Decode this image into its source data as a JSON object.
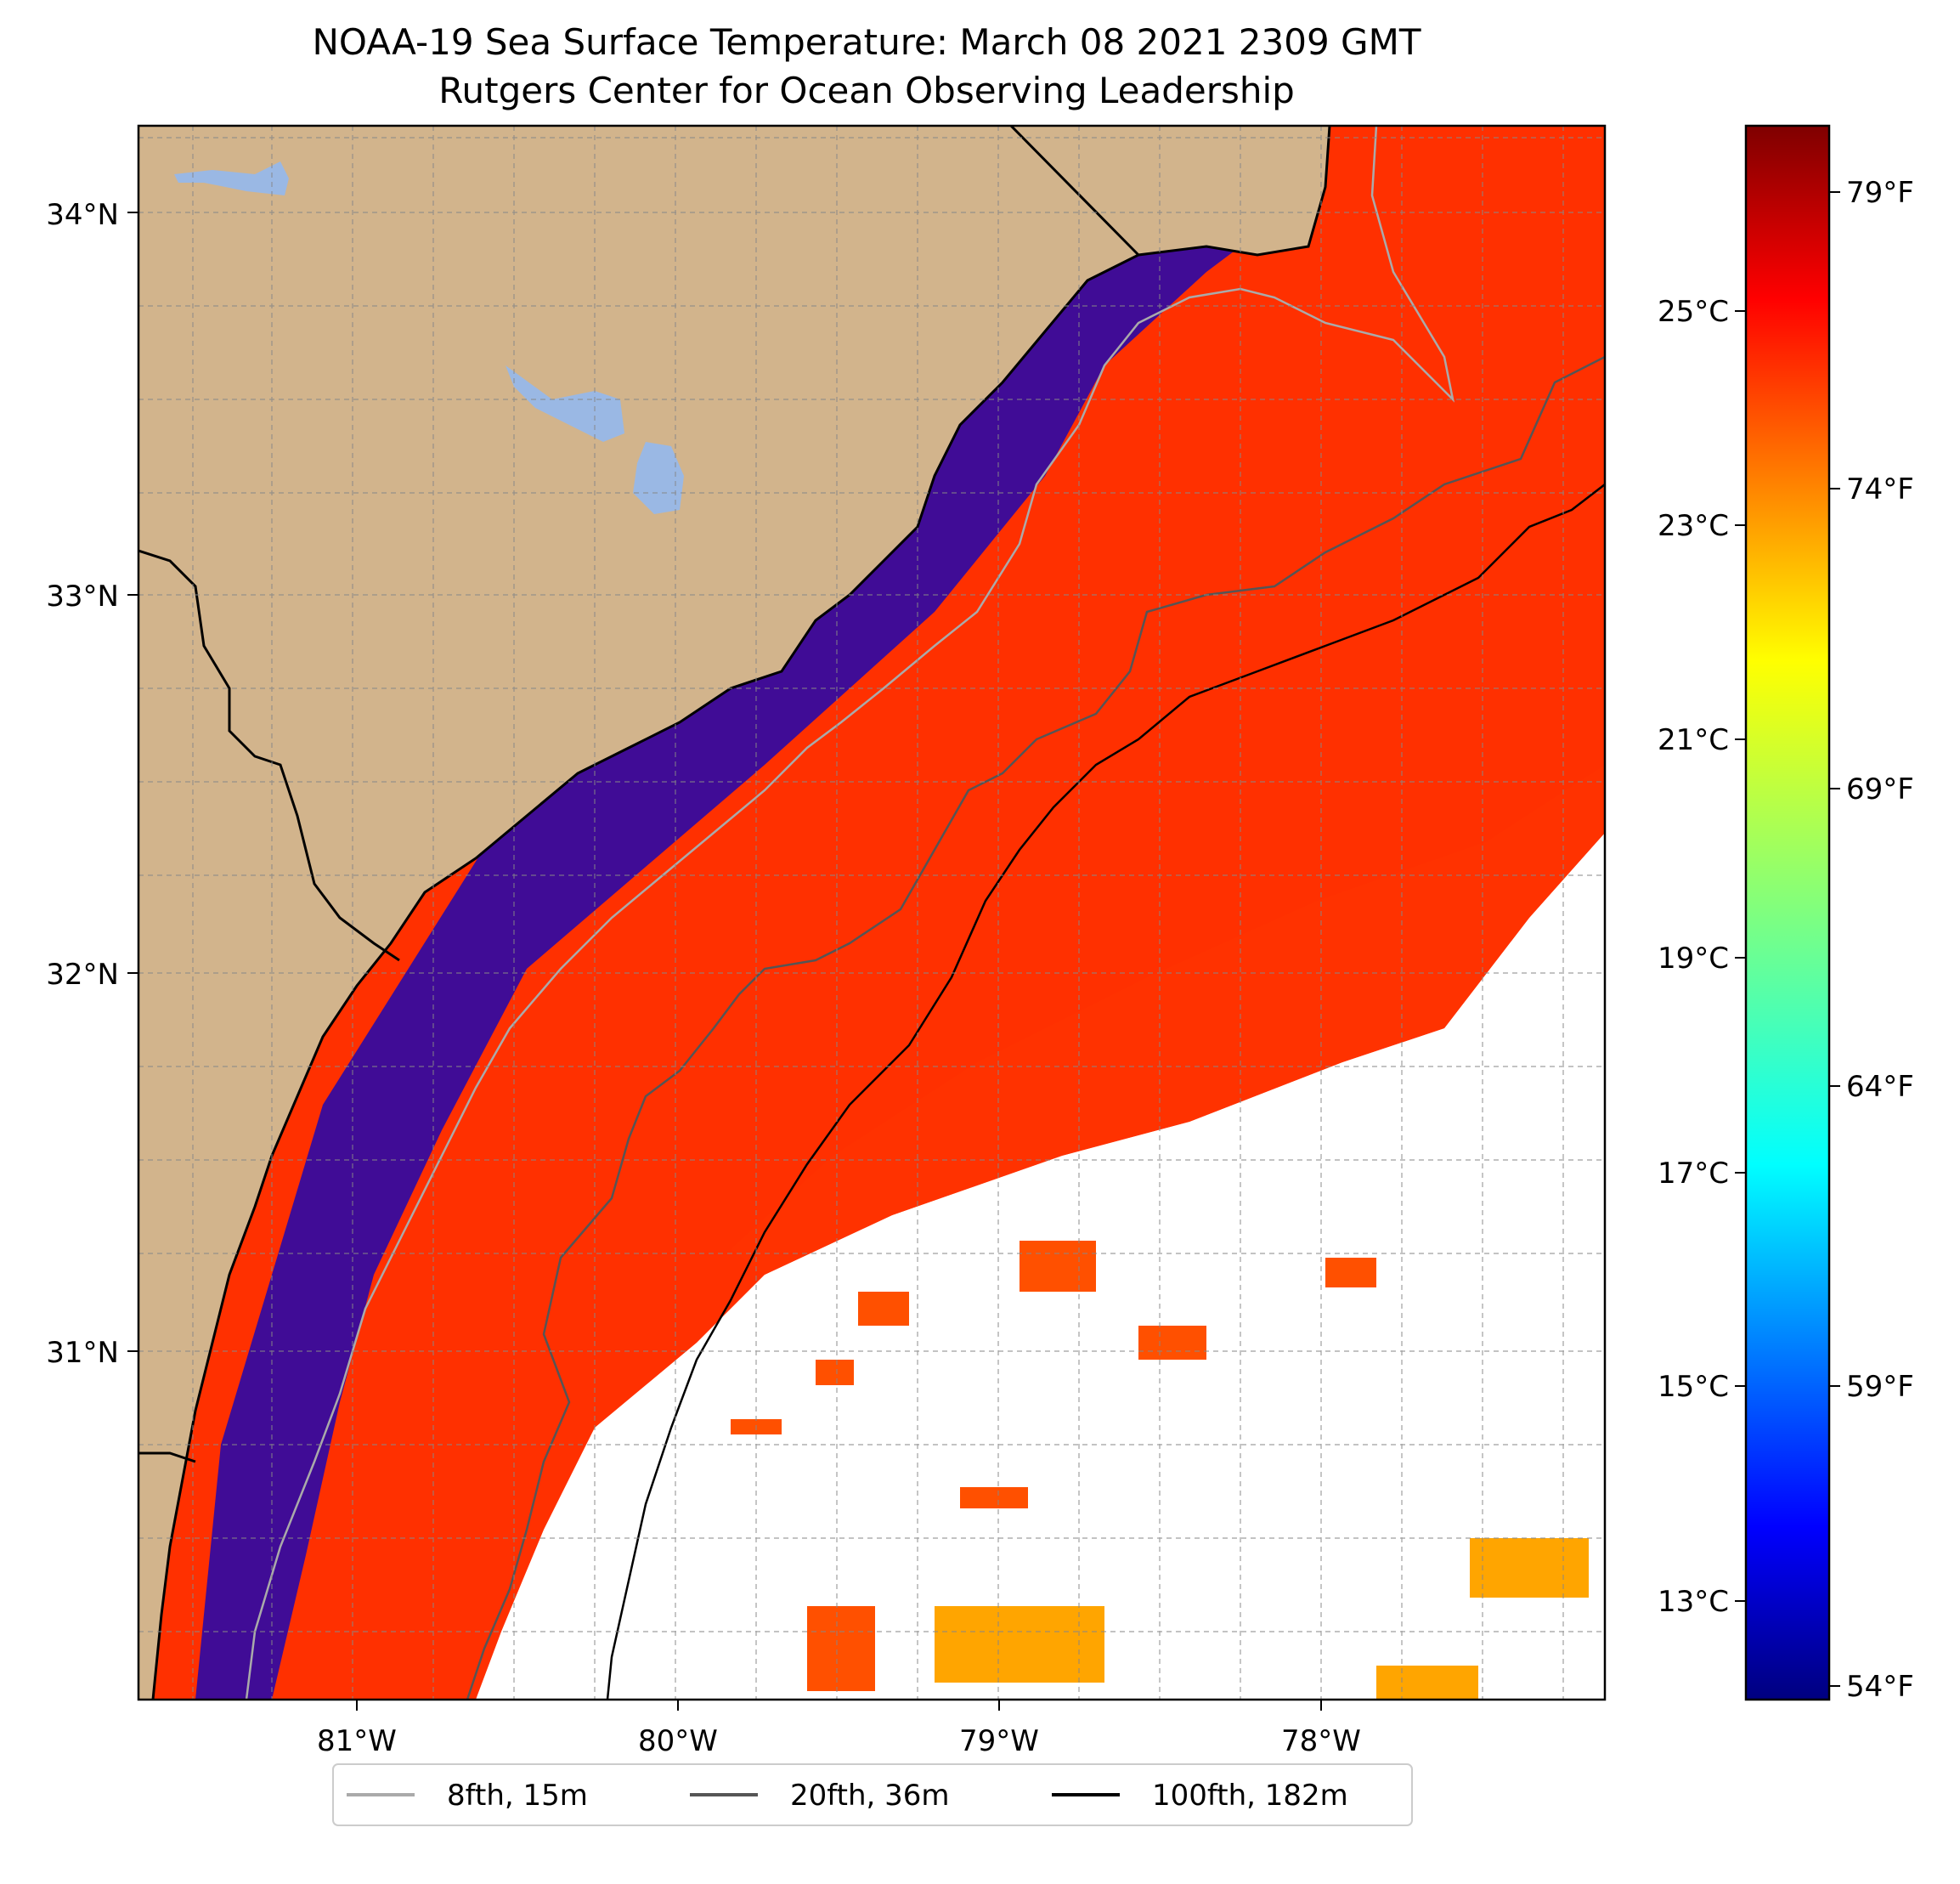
{
  "title": {
    "line1": "NOAA-19 Sea Surface Temperature: March 08 2021 2309 GMT",
    "line2": "Rutgers Center for Ocean Observing Leadership"
  },
  "map": {
    "lat_labels": [
      "34°N",
      "33°N",
      "32°N",
      "31°N"
    ],
    "lon_labels": [
      "81°W",
      "80°W",
      "79°W",
      "78°W"
    ],
    "lon_range": [
      -81.68,
      -77.12
    ],
    "lat_range": [
      30.08,
      34.22
    ],
    "gridlines": true,
    "colors": {
      "land": "#d2b48c",
      "lake": "#9ab8e4",
      "no_data": "#ffffff",
      "coastline": "#000000"
    }
  },
  "colorbar": {
    "celsius_labels": [
      "25°C",
      "23°C",
      "21°C",
      "19°C",
      "17°C",
      "15°C",
      "13°C"
    ],
    "fahrenheit_labels": [
      "79°F",
      "74°F",
      "69°F",
      "64°F",
      "59°F",
      "54°F"
    ],
    "range_c": [
      12.0,
      27.0
    ],
    "colormap": "jet",
    "stops": [
      "#7f0000",
      "#ff0000",
      "#ff7f00",
      "#ffff00",
      "#7fff7f",
      "#00ffff",
      "#007fff",
      "#0000ff",
      "#00007f"
    ]
  },
  "legend": {
    "placement": "bottom-center",
    "items": [
      {
        "label": "8fth, 15m",
        "color": "#aaaaaa"
      },
      {
        "label": "20fth, 36m",
        "color": "#555555"
      },
      {
        "label": "100fth, 182m",
        "color": "#000000"
      }
    ]
  }
}
